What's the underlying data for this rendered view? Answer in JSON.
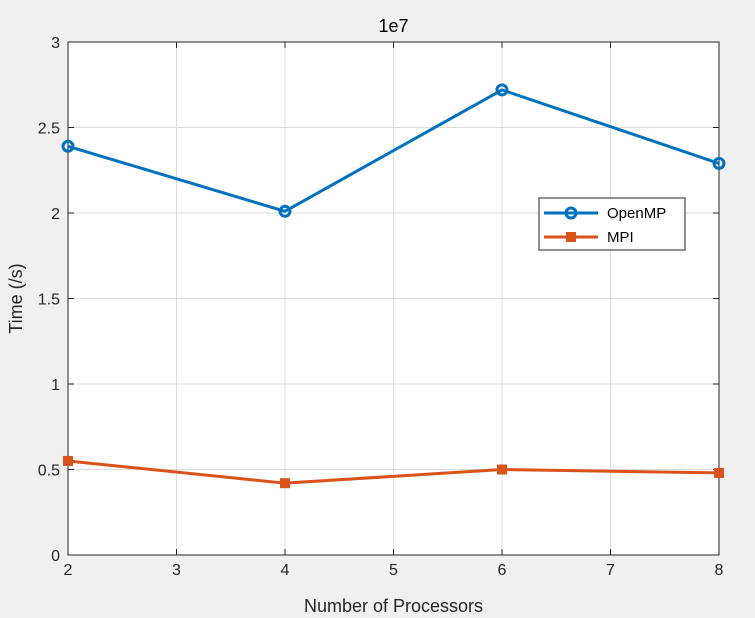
{
  "chart_data": {
    "type": "line",
    "title": "1e7",
    "xlabel": "Number of Processors",
    "ylabel": "Time (/s)",
    "x": [
      2,
      4,
      6,
      8
    ],
    "xlim": [
      2,
      8
    ],
    "ylim": [
      0,
      3
    ],
    "xticks": [
      2,
      3,
      4,
      5,
      6,
      7,
      8
    ],
    "yticks": [
      0,
      0.5,
      1,
      1.5,
      2,
      2.5,
      3
    ],
    "xtick_labels": [
      "2",
      "3",
      "4",
      "5",
      "6",
      "7",
      "8"
    ],
    "ytick_labels": [
      "0",
      "0.5",
      "1",
      "1.5",
      "2",
      "2.5",
      "3"
    ],
    "grid": true,
    "legend_position": "right",
    "series": [
      {
        "name": "OpenMP",
        "values": [
          2.39,
          2.01,
          2.72,
          2.29
        ],
        "color": "#0072BD",
        "marker": "circle"
      },
      {
        "name": "MPI",
        "values": [
          0.55,
          0.42,
          0.5,
          0.48
        ],
        "color": "#D95319",
        "marker": "square"
      }
    ]
  }
}
